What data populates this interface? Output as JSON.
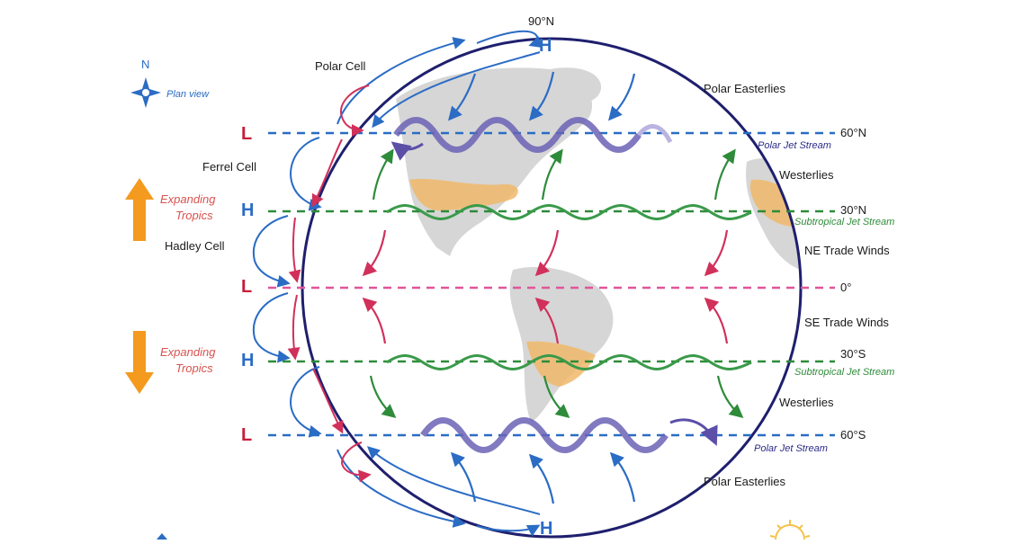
{
  "latitudes": {
    "n90": "90°N",
    "n60": "60°N",
    "n30": "30°N",
    "eq": "0°",
    "s30": "30°S",
    "s60": "60°S"
  },
  "pressure": {
    "north_pole": "H",
    "south_pole": "H",
    "l_60n": "L",
    "h_30n": "H",
    "l_eq": "L",
    "h_30s": "H",
    "l_60s": "L"
  },
  "cells": {
    "polar": "Polar Cell",
    "ferrel": "Ferrel Cell",
    "hadley": "Hadley Cell"
  },
  "winds": {
    "polar_easterlies_n": "Polar Easterlies",
    "westerlies_n": "Westerlies",
    "ne_trade": "NE Trade Winds",
    "se_trade": "SE Trade Winds",
    "westerlies_s": "Westerlies",
    "polar_easterlies_s": "Polar Easterlies"
  },
  "jets": {
    "polar_n": "Polar Jet Stream",
    "subtropical_n": "Subtropical Jet Stream",
    "subtropical_s": "Subtropical Jet Stream",
    "polar_s": "Polar Jet Stream"
  },
  "tropics": {
    "north": [
      "Expanding",
      "Tropics"
    ],
    "south": [
      "Expanding",
      "Tropics"
    ]
  },
  "compass": {
    "north": "N",
    "plan": "Plan view"
  },
  "colors": {
    "globe": "#1f1f6e",
    "polar": "#2b6cc4",
    "ferrel": "#2e8b3a",
    "hadley": "#d1305a",
    "equator": "#e0559a",
    "jet_polar": "#6b63b5",
    "jet_sub": "#3a9a4a",
    "desert": "#f0b86a",
    "land": "#d6d6d6",
    "expand": "#f39a1f"
  },
  "icons": [
    "compass-icon",
    "sun-icon"
  ]
}
